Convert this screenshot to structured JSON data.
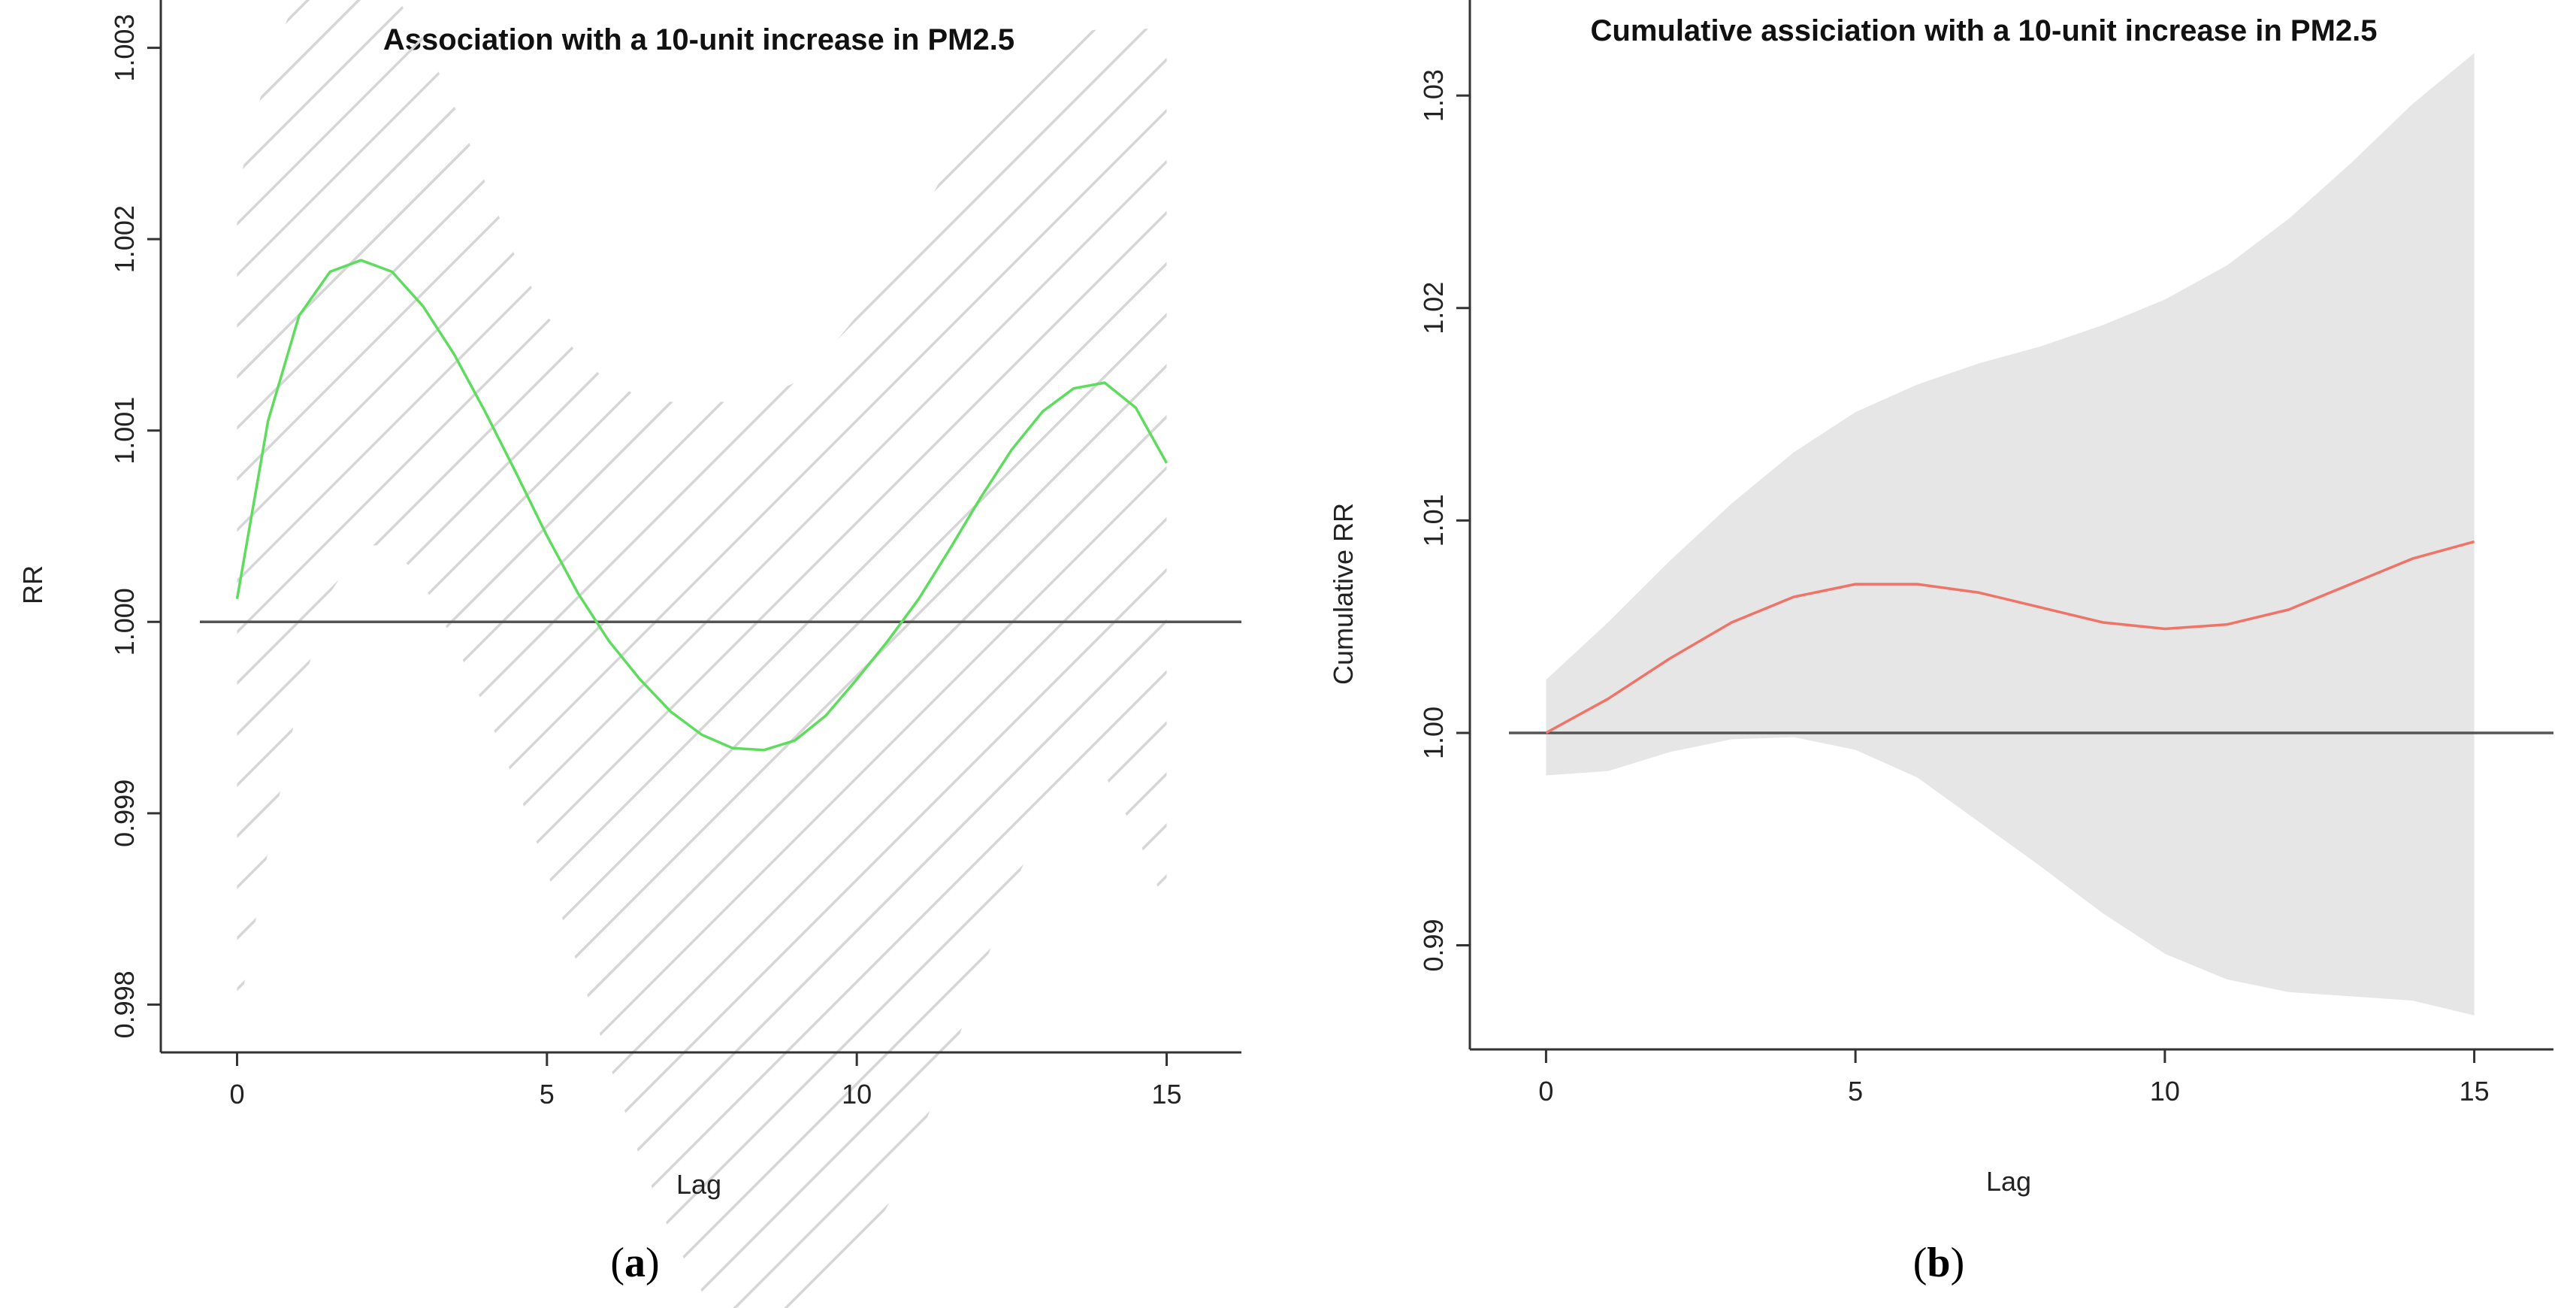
{
  "chart_data": [
    {
      "type": "line",
      "title": "Association with a 10-unit increase in PM2.5",
      "xlabel": "Lag",
      "ylabel": "RR",
      "panel_label": "a",
      "xlim": [
        -0.6,
        15.6
      ],
      "ylim": [
        0.99775,
        1.00325
      ],
      "x_ticks": [
        0,
        5,
        10,
        15
      ],
      "y_ticks": [
        0.998,
        0.999,
        1.0,
        1.001,
        1.002,
        1.003
      ],
      "y_tick_labels": [
        "0.998",
        "0.999",
        "1.000",
        "1.001",
        "1.002",
        "1.003"
      ],
      "reference_line": 1.0,
      "series": [
        {
          "name": "RR",
          "color": "#5ddc5d",
          "x": [
            0,
            0.5,
            1,
            1.5,
            2,
            2.5,
            3,
            3.5,
            4,
            4.5,
            5,
            5.5,
            6,
            6.5,
            7,
            7.5,
            8,
            8.5,
            9,
            9.5,
            10,
            10.5,
            11,
            11.5,
            12,
            12.5,
            13,
            13.5,
            14,
            14.5,
            15
          ],
          "values": [
            1.00012,
            1.00105,
            1.0016,
            1.00183,
            1.00189,
            1.00183,
            1.00165,
            1.0014,
            1.0011,
            1.00078,
            1.00045,
            1.00015,
            0.9999,
            0.9997,
            0.99953,
            0.99941,
            0.99934,
            0.99933,
            0.99938,
            0.99951,
            0.9997,
            0.9999,
            1.00012,
            1.00038,
            1.00065,
            1.0009,
            1.0011,
            1.00122,
            1.00125,
            1.00112,
            1.00083
          ]
        }
      ],
      "ci_style": "hatched",
      "ci_color": "#d9d9d9",
      "ci_upper": [
        1.00225,
        1.0029,
        1.0033,
        1.0034,
        1.0034,
        1.0033,
        1.00305,
        1.0027,
        1.0023,
        1.0019,
        1.0016,
        1.0014,
        1.00125,
        1.00118,
        1.00115,
        1.00115,
        1.00115,
        1.00118,
        1.00125,
        1.0014,
        1.0016,
        1.00185,
        1.0021,
        1.0024,
        1.00265,
        1.00285,
        1.003,
        1.00308,
        1.0031,
        1.0031,
        1.0031
      ],
      "ci_lower": [
        0.9979,
        0.9988,
        0.9996,
        1.00015,
        1.0004,
        1.0004,
        1.0002,
        0.9999,
        0.99955,
        0.99915,
        0.9987,
        0.9982,
        0.9977,
        0.9972,
        0.9968,
        0.9965,
        0.99635,
        0.9963,
        0.99635,
        0.99645,
        0.99665,
        0.99695,
        0.9973,
        0.9977,
        0.99815,
        0.9986,
        0.99895,
        0.9992,
        0.9992,
        0.9989,
        0.9985
      ]
    },
    {
      "type": "line",
      "title": "Cumulative assiciation with a 10-unit increase in PM2.5",
      "xlabel": "Lag",
      "ylabel": "Cumulative RR",
      "panel_label": "b",
      "xlim": [
        -0.6,
        15.6
      ],
      "ylim": [
        0.9851,
        1.0345
      ],
      "x_ticks": [
        0,
        5,
        10,
        15
      ],
      "y_ticks": [
        0.99,
        1.0,
        1.01,
        1.02,
        1.03
      ],
      "y_tick_labels": [
        "0.99",
        "1.00",
        "1.01",
        "1.02",
        "1.03"
      ],
      "reference_line": 1.0,
      "series": [
        {
          "name": "Cumulative RR",
          "color": "#f07368",
          "x": [
            0,
            1,
            2,
            3,
            4,
            5,
            6,
            7,
            8,
            9,
            10,
            11,
            12,
            13,
            14,
            15
          ],
          "values": [
            1.0,
            1.0016,
            1.0035,
            1.0052,
            1.0064,
            1.007,
            1.007,
            1.0066,
            1.0059,
            1.0052,
            1.0049,
            1.0051,
            1.0058,
            1.007,
            1.0082,
            1.009
          ]
        }
      ],
      "ci_style": "filled",
      "ci_color": "#e6e6e6",
      "ci_upper": [
        1.0025,
        1.0052,
        1.0081,
        1.0108,
        1.0132,
        1.0151,
        1.0164,
        1.0174,
        1.0182,
        1.0192,
        1.0204,
        1.022,
        1.0242,
        1.0268,
        1.0296,
        1.032
      ],
      "ci_lower": [
        0.998,
        0.9982,
        0.9991,
        0.9997,
        0.9998,
        0.9992,
        0.9979,
        0.9958,
        0.9937,
        0.9915,
        0.9896,
        0.9884,
        0.9878,
        0.9876,
        0.9874,
        0.9867
      ]
    }
  ]
}
